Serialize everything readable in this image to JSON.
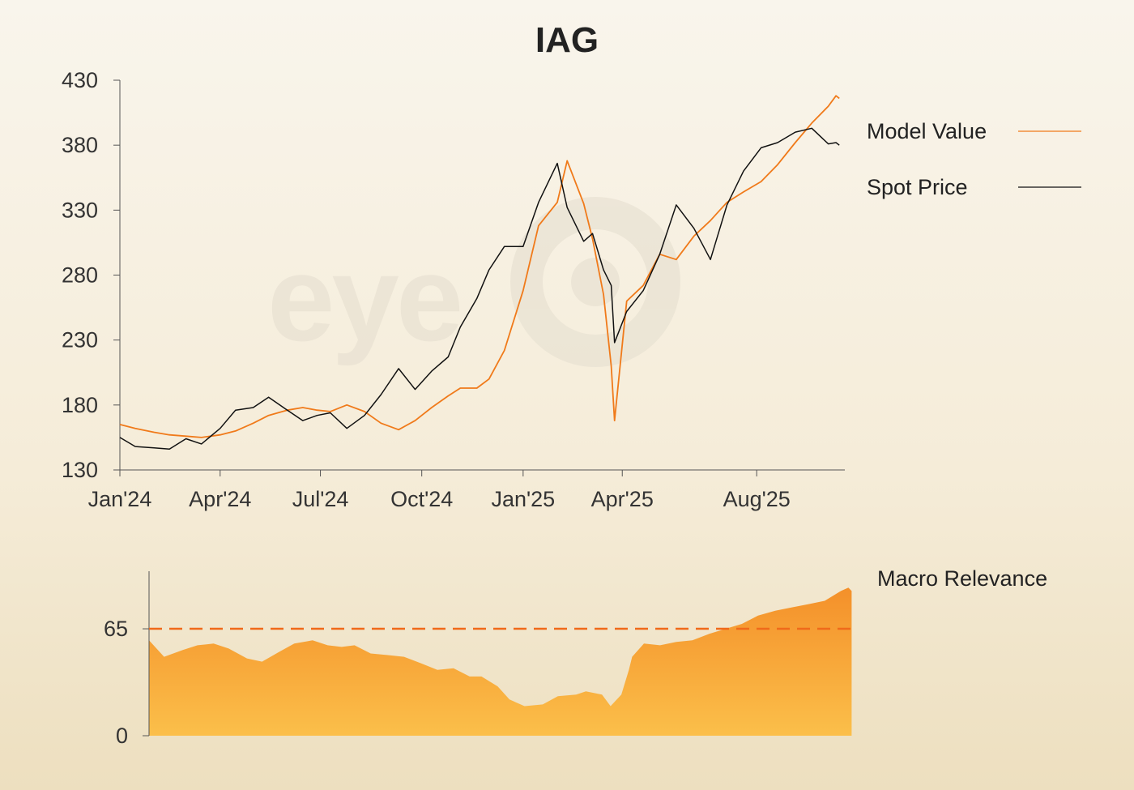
{
  "title": "IAG",
  "watermark": "eye",
  "colors": {
    "model": "#f07a1a",
    "spot": "#111111",
    "macro_top": "#f4902a",
    "macro_bottom": "#fbbf4a",
    "threshold": "#f06a1a",
    "axis": "#444444"
  },
  "chart_data": [
    {
      "type": "line",
      "title": "IAG",
      "xlabel": "",
      "ylabel": "",
      "ylim": [
        130,
        430
      ],
      "yticks": [
        130,
        180,
        230,
        280,
        330,
        380,
        430
      ],
      "xlim": [
        "2024-01-01",
        "2025-10-20"
      ],
      "xticks": [
        {
          "date": "2024-01-01",
          "label": "Jan'24"
        },
        {
          "date": "2024-04-01",
          "label": "Apr'24"
        },
        {
          "date": "2024-07-01",
          "label": "Jul'24"
        },
        {
          "date": "2024-10-01",
          "label": "Oct'24"
        },
        {
          "date": "2025-01-01",
          "label": "Jan'25"
        },
        {
          "date": "2025-04-01",
          "label": "Apr'25"
        },
        {
          "date": "2025-08-01",
          "label": "Aug'25"
        }
      ],
      "grid": false,
      "legend_position": "right",
      "series": [
        {
          "name": "Model Value",
          "color": "#f07a1a",
          "x": [
            "2024-01-01",
            "2024-01-15",
            "2024-02-01",
            "2024-02-15",
            "2024-03-01",
            "2024-03-15",
            "2024-04-01",
            "2024-04-15",
            "2024-05-01",
            "2024-05-15",
            "2024-06-01",
            "2024-06-15",
            "2024-06-28",
            "2024-07-10",
            "2024-07-25",
            "2024-08-10",
            "2024-08-25",
            "2024-09-10",
            "2024-09-25",
            "2024-10-10",
            "2024-10-25",
            "2024-11-05",
            "2024-11-20",
            "2024-12-01",
            "2024-12-15",
            "2025-01-01",
            "2025-01-15",
            "2025-02-01",
            "2025-02-10",
            "2025-02-25",
            "2025-03-05",
            "2025-03-15",
            "2025-03-22",
            "2025-03-25",
            "2025-04-05",
            "2025-04-20",
            "2025-05-05",
            "2025-05-20",
            "2025-06-05",
            "2025-06-20",
            "2025-07-05",
            "2025-07-20",
            "2025-08-05",
            "2025-08-20",
            "2025-09-05",
            "2025-09-20",
            "2025-10-05",
            "2025-10-12",
            "2025-10-15"
          ],
          "y": [
            165,
            162,
            159,
            157,
            156,
            155,
            157,
            160,
            166,
            172,
            176,
            178,
            176,
            175,
            180,
            175,
            166,
            161,
            168,
            178,
            187,
            193,
            193,
            200,
            222,
            268,
            318,
            336,
            368,
            335,
            308,
            265,
            210,
            168,
            260,
            272,
            296,
            292,
            310,
            322,
            336,
            344,
            352,
            365,
            382,
            397,
            410,
            418,
            416
          ]
        },
        {
          "name": "Spot Price",
          "color": "#111111",
          "x": [
            "2024-01-01",
            "2024-01-15",
            "2024-02-01",
            "2024-02-15",
            "2024-03-01",
            "2024-03-15",
            "2024-04-01",
            "2024-04-15",
            "2024-05-01",
            "2024-05-15",
            "2024-06-01",
            "2024-06-15",
            "2024-06-28",
            "2024-07-10",
            "2024-07-25",
            "2024-08-10",
            "2024-08-25",
            "2024-09-10",
            "2024-09-25",
            "2024-10-10",
            "2024-10-25",
            "2024-11-05",
            "2024-11-20",
            "2024-12-01",
            "2024-12-15",
            "2025-01-01",
            "2025-01-15",
            "2025-02-01",
            "2025-02-10",
            "2025-02-25",
            "2025-03-05",
            "2025-03-15",
            "2025-03-22",
            "2025-03-25",
            "2025-04-05",
            "2025-04-20",
            "2025-05-05",
            "2025-05-20",
            "2025-06-05",
            "2025-06-20",
            "2025-07-05",
            "2025-07-20",
            "2025-08-05",
            "2025-08-20",
            "2025-09-05",
            "2025-09-20",
            "2025-10-05",
            "2025-10-12",
            "2025-10-15"
          ],
          "y": [
            155,
            148,
            147,
            146,
            154,
            150,
            162,
            176,
            178,
            186,
            176,
            168,
            172,
            174,
            162,
            172,
            188,
            208,
            192,
            206,
            217,
            240,
            262,
            284,
            302,
            302,
            336,
            366,
            332,
            306,
            312,
            284,
            272,
            228,
            252,
            268,
            296,
            334,
            316,
            292,
            334,
            360,
            378,
            382,
            390,
            393,
            381,
            382,
            380
          ]
        }
      ]
    },
    {
      "type": "area",
      "title": "Macro Relevance",
      "ylim": [
        0,
        100
      ],
      "yticks": [
        0,
        65
      ],
      "threshold": 65,
      "xlim": [
        "2024-01-01",
        "2025-10-20"
      ],
      "series": [
        {
          "name": "Macro Relevance",
          "x": [
            "2024-01-01",
            "2024-01-15",
            "2024-02-01",
            "2024-02-15",
            "2024-03-01",
            "2024-03-15",
            "2024-04-01",
            "2024-04-15",
            "2024-05-01",
            "2024-05-15",
            "2024-06-01",
            "2024-06-15",
            "2024-06-28",
            "2024-07-10",
            "2024-07-25",
            "2024-08-10",
            "2024-08-25",
            "2024-09-10",
            "2024-09-25",
            "2024-10-10",
            "2024-10-25",
            "2024-11-05",
            "2024-11-20",
            "2024-12-01",
            "2024-12-15",
            "2025-01-01",
            "2025-01-15",
            "2025-02-01",
            "2025-02-10",
            "2025-02-25",
            "2025-03-05",
            "2025-03-15",
            "2025-03-22",
            "2025-03-25",
            "2025-04-05",
            "2025-04-20",
            "2025-05-05",
            "2025-05-20",
            "2025-06-05",
            "2025-06-20",
            "2025-07-05",
            "2025-07-20",
            "2025-08-05",
            "2025-08-20",
            "2025-09-05",
            "2025-09-20",
            "2025-10-05",
            "2025-10-12",
            "2025-10-15"
          ],
          "y": [
            58,
            48,
            52,
            55,
            56,
            53,
            47,
            45,
            51,
            56,
            58,
            55,
            54,
            55,
            50,
            49,
            48,
            44,
            40,
            41,
            36,
            36,
            30,
            22,
            18,
            19,
            24,
            25,
            27,
            25,
            18,
            25,
            40,
            48,
            56,
            55,
            57,
            58,
            62,
            65,
            68,
            73,
            76,
            78,
            80,
            82,
            88,
            90,
            88
          ]
        }
      ]
    }
  ]
}
